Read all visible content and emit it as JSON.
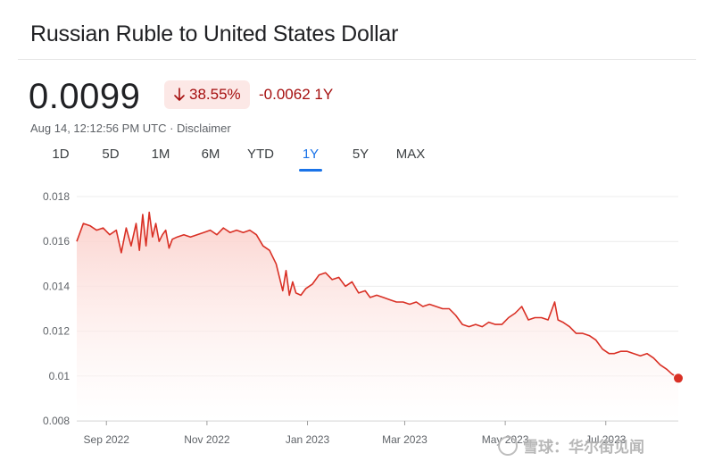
{
  "header": {
    "title": "Russian Ruble to United States Dollar",
    "price": "0.0099",
    "percent_change": "38.55%",
    "percent_arrow_icon": "arrow-down-icon",
    "change": "-0.0062 1Y",
    "timestamp": "Aug 14, 12:12:56 PM UTC · Disclaimer"
  },
  "tabs": [
    {
      "label": "1D"
    },
    {
      "label": "5D"
    },
    {
      "label": "1M"
    },
    {
      "label": "6M"
    },
    {
      "label": "YTD"
    },
    {
      "label": "1Y",
      "active": true
    },
    {
      "label": "5Y"
    },
    {
      "label": "MAX"
    }
  ],
  "colors": {
    "line": "#d93025",
    "fill_top": "#fbd0cb",
    "negative_text": "#a50e0e",
    "active_tab": "#1a73e8"
  },
  "watermark": {
    "text": "雪球：华尔街见闻"
  },
  "chart_data": {
    "type": "area",
    "title": "",
    "xlabel": "",
    "ylabel": "",
    "ylim": [
      0.008,
      0.018
    ],
    "yticks": [
      "0.018",
      "0.016",
      "0.014",
      "0.012",
      "0.01",
      "0.008"
    ],
    "ytick_values": [
      0.018,
      0.016,
      0.014,
      0.012,
      0.01,
      0.008
    ],
    "xticks": [
      "Sep 2022",
      "Nov 2022",
      "Jan 2023",
      "Mar 2023",
      "May 2023",
      "Jul 2023"
    ],
    "xtick_dates": [
      "2022-09-01",
      "2022-11-01",
      "2023-01-01",
      "2023-03-01",
      "2023-05-01",
      "2023-07-01"
    ],
    "xlim": [
      "2022-08-14",
      "2023-08-14"
    ],
    "grid": true,
    "series": [
      {
        "x": [
          "2022-08-14",
          "2022-08-18",
          "2022-08-22",
          "2022-08-26",
          "2022-08-30",
          "2022-09-03",
          "2022-09-07",
          "2022-09-10",
          "2022-09-13",
          "2022-09-16",
          "2022-09-19",
          "2022-09-21",
          "2022-09-23",
          "2022-09-25",
          "2022-09-27",
          "2022-09-29",
          "2022-10-01",
          "2022-10-03",
          "2022-10-05",
          "2022-10-07",
          "2022-10-09",
          "2022-10-11",
          "2022-10-14",
          "2022-10-18",
          "2022-10-22",
          "2022-10-26",
          "2022-10-30",
          "2022-11-03",
          "2022-11-07",
          "2022-11-11",
          "2022-11-15",
          "2022-11-19",
          "2022-11-23",
          "2022-11-27",
          "2022-12-01",
          "2022-12-05",
          "2022-12-09",
          "2022-12-13",
          "2022-12-17",
          "2022-12-19",
          "2022-12-21",
          "2022-12-23",
          "2022-12-25",
          "2022-12-28",
          "2022-12-31",
          "2023-01-04",
          "2023-01-08",
          "2023-01-12",
          "2023-01-16",
          "2023-01-20",
          "2023-01-24",
          "2023-01-28",
          "2023-02-01",
          "2023-02-05",
          "2023-02-08",
          "2023-02-12",
          "2023-02-16",
          "2023-02-20",
          "2023-02-24",
          "2023-02-28",
          "2023-03-04",
          "2023-03-08",
          "2023-03-12",
          "2023-03-16",
          "2023-03-20",
          "2023-03-24",
          "2023-03-28",
          "2023-04-01",
          "2023-04-05",
          "2023-04-09",
          "2023-04-13",
          "2023-04-17",
          "2023-04-21",
          "2023-04-25",
          "2023-04-29",
          "2023-05-03",
          "2023-05-07",
          "2023-05-11",
          "2023-05-15",
          "2023-05-19",
          "2023-05-23",
          "2023-05-27",
          "2023-05-31",
          "2023-06-02",
          "2023-06-05",
          "2023-06-09",
          "2023-06-13",
          "2023-06-17",
          "2023-06-21",
          "2023-06-25",
          "2023-06-29",
          "2023-07-03",
          "2023-07-06",
          "2023-07-10",
          "2023-07-14",
          "2023-07-18",
          "2023-07-22",
          "2023-07-26",
          "2023-07-30",
          "2023-08-03",
          "2023-08-07",
          "2023-08-10",
          "2023-08-14"
        ],
        "y": [
          0.016,
          0.0168,
          0.0167,
          0.0165,
          0.0166,
          0.0163,
          0.0165,
          0.0155,
          0.0166,
          0.0158,
          0.0168,
          0.0156,
          0.0172,
          0.0158,
          0.0173,
          0.0162,
          0.0168,
          0.016,
          0.0163,
          0.0165,
          0.0157,
          0.0161,
          0.0162,
          0.0163,
          0.0162,
          0.0163,
          0.0164,
          0.0165,
          0.0163,
          0.0166,
          0.0164,
          0.0165,
          0.0164,
          0.0165,
          0.0163,
          0.0158,
          0.0156,
          0.015,
          0.0138,
          0.0147,
          0.0136,
          0.0142,
          0.0137,
          0.0136,
          0.0139,
          0.0141,
          0.0145,
          0.0146,
          0.0143,
          0.0144,
          0.014,
          0.0142,
          0.0137,
          0.0138,
          0.0135,
          0.0136,
          0.0135,
          0.0134,
          0.0133,
          0.0133,
          0.0132,
          0.0133,
          0.0131,
          0.0132,
          0.0131,
          0.013,
          0.013,
          0.0127,
          0.0123,
          0.0122,
          0.0123,
          0.0122,
          0.0124,
          0.0123,
          0.0123,
          0.0126,
          0.0128,
          0.0131,
          0.0125,
          0.0126,
          0.0126,
          0.0125,
          0.0133,
          0.0125,
          0.0124,
          0.0122,
          0.0119,
          0.0119,
          0.0118,
          0.0116,
          0.0112,
          0.011,
          0.011,
          0.0111,
          0.0111,
          0.011,
          0.0109,
          0.011,
          0.0108,
          0.0105,
          0.0103,
          0.0101,
          0.0099
        ]
      }
    ]
  }
}
